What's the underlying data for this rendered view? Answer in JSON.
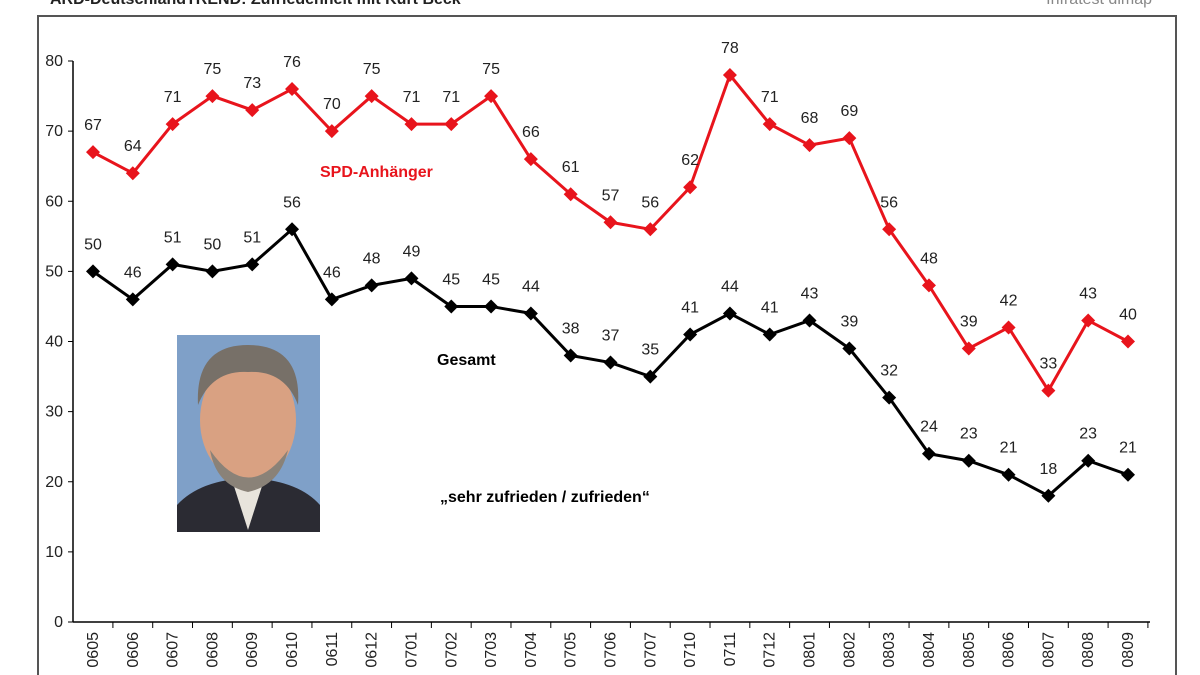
{
  "chart_data": {
    "type": "line",
    "title": "ARD-DeutschlandTREND: Zufriedenheit mit Kurt Beck",
    "source": "Infratest dimap",
    "annotation": "„sehr zufrieden / zufrieden“",
    "categories": [
      "0605",
      "0606",
      "0607",
      "0608",
      "0609",
      "0610",
      "0611",
      "0612",
      "0701",
      "0702",
      "0703",
      "0704",
      "0705",
      "0706",
      "0707",
      "0710",
      "0711",
      "0712",
      "0801",
      "0802",
      "0803",
      "0804",
      "0805",
      "0806",
      "0807",
      "0808",
      "0809"
    ],
    "series": [
      {
        "name": "SPD-Anhänger",
        "color": "#e8141c",
        "values": [
          67,
          64,
          71,
          75,
          73,
          76,
          70,
          75,
          71,
          71,
          75,
          66,
          61,
          57,
          56,
          62,
          78,
          71,
          68,
          69,
          56,
          48,
          39,
          42,
          33,
          43,
          40
        ]
      },
      {
        "name": "Gesamt",
        "color": "#000000",
        "values": [
          50,
          46,
          51,
          50,
          51,
          56,
          46,
          48,
          49,
          45,
          45,
          44,
          38,
          37,
          35,
          41,
          44,
          41,
          43,
          39,
          32,
          24,
          23,
          21,
          18,
          23,
          21
        ]
      }
    ],
    "ylim": [
      0,
      80
    ],
    "yticks": [
      0,
      10,
      20,
      30,
      40,
      50,
      60,
      70,
      80
    ],
    "grid": false
  }
}
